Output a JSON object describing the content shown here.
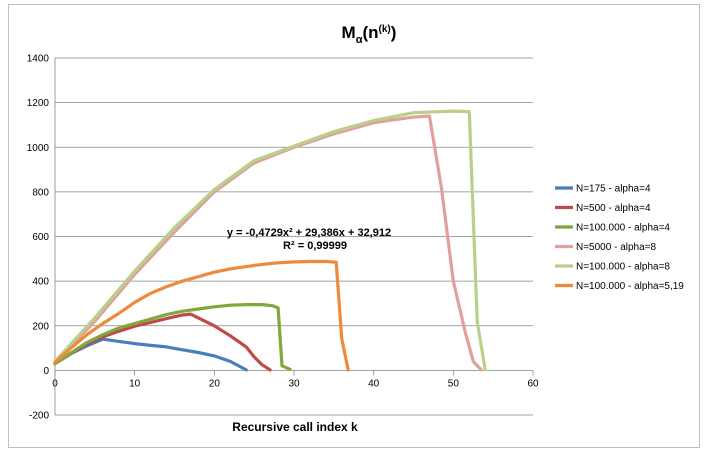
{
  "chart_data": {
    "type": "line",
    "title": "M",
    "title_sub": "α",
    "title_paren_open": "(n",
    "title_sup": "(k)",
    "title_paren_close": ")",
    "xlabel": "Recursive call index k",
    "ylabel": "",
    "xlim": [
      0,
      60
    ],
    "ylim": [
      -200,
      1400
    ],
    "xticks": [
      0,
      10,
      20,
      30,
      40,
      50,
      60
    ],
    "yticks": [
      -200,
      0,
      200,
      400,
      600,
      800,
      1000,
      1200,
      1400
    ],
    "grid": "horizontal",
    "legend_position": "right",
    "annotation": {
      "line1": "y = -0,4729x² + 29,386x + 32,912",
      "line2": "R² = 0,99999"
    },
    "series": [
      {
        "name": "N=175 - alpha=4",
        "color": "#4a7ebb",
        "points": [
          [
            0,
            30
          ],
          [
            2,
            75
          ],
          [
            4,
            110
          ],
          [
            6,
            140
          ],
          [
            8,
            130
          ],
          [
            10,
            120
          ],
          [
            12,
            112
          ],
          [
            14,
            105
          ],
          [
            16,
            92
          ],
          [
            18,
            80
          ],
          [
            20,
            65
          ],
          [
            22,
            40
          ],
          [
            24,
            2
          ]
        ]
      },
      {
        "name": "N=500 - alpha=4",
        "color": "#be4b48",
        "points": [
          [
            0,
            30
          ],
          [
            2,
            75
          ],
          [
            4,
            118
          ],
          [
            6,
            150
          ],
          [
            8,
            175
          ],
          [
            10,
            198
          ],
          [
            12,
            215
          ],
          [
            14,
            232
          ],
          [
            16,
            248
          ],
          [
            17,
            252
          ],
          [
            18,
            235
          ],
          [
            20,
            200
          ],
          [
            22,
            155
          ],
          [
            24,
            105
          ],
          [
            25,
            60
          ],
          [
            26,
            25
          ],
          [
            27,
            2
          ]
        ]
      },
      {
        "name": "N=100.000 - alpha=4",
        "color": "#7fa93c",
        "points": [
          [
            0,
            30
          ],
          [
            2,
            78
          ],
          [
            4,
            125
          ],
          [
            6,
            160
          ],
          [
            8,
            190
          ],
          [
            10,
            210
          ],
          [
            12,
            230
          ],
          [
            14,
            250
          ],
          [
            16,
            265
          ],
          [
            18,
            275
          ],
          [
            20,
            285
          ],
          [
            22,
            292
          ],
          [
            24,
            295
          ],
          [
            26,
            295
          ],
          [
            27.3,
            290
          ],
          [
            28,
            280
          ],
          [
            28.5,
            20
          ],
          [
            29.5,
            5
          ]
        ]
      },
      {
        "name": "N=5000 - alpha=8",
        "color": "#e0a09e",
        "points": [
          [
            0,
            35
          ],
          [
            5,
            220
          ],
          [
            10,
            430
          ],
          [
            15,
            620
          ],
          [
            20,
            800
          ],
          [
            25,
            930
          ],
          [
            30,
            1000
          ],
          [
            35,
            1060
          ],
          [
            40,
            1110
          ],
          [
            45,
            1135
          ],
          [
            47,
            1140
          ],
          [
            48.5,
            820
          ],
          [
            50,
            400
          ],
          [
            51.5,
            170
          ],
          [
            52.5,
            40
          ],
          [
            53.5,
            2
          ]
        ]
      },
      {
        "name": "N=100.000 - alpha=8",
        "color": "#b9d08a",
        "points": [
          [
            0,
            40
          ],
          [
            5,
            235
          ],
          [
            10,
            445
          ],
          [
            15,
            640
          ],
          [
            20,
            810
          ],
          [
            25,
            940
          ],
          [
            30,
            1005
          ],
          [
            35,
            1070
          ],
          [
            40,
            1120
          ],
          [
            45,
            1155
          ],
          [
            50,
            1162
          ],
          [
            52,
            1160
          ],
          [
            53,
            220
          ],
          [
            54,
            2
          ]
        ]
      },
      {
        "name": "N=100.000 - alpha=5,19",
        "color": "#ee8a3c",
        "points": [
          [
            0,
            35
          ],
          [
            2,
            100
          ],
          [
            4,
            160
          ],
          [
            6,
            210
          ],
          [
            8,
            255
          ],
          [
            10,
            305
          ],
          [
            12,
            345
          ],
          [
            14,
            375
          ],
          [
            16,
            400
          ],
          [
            18,
            420
          ],
          [
            20,
            440
          ],
          [
            22,
            455
          ],
          [
            24,
            465
          ],
          [
            26,
            475
          ],
          [
            28,
            482
          ],
          [
            30,
            486
          ],
          [
            32,
            488
          ],
          [
            34,
            488
          ],
          [
            35.3,
            485
          ],
          [
            36,
            140
          ],
          [
            36.8,
            2
          ]
        ]
      }
    ]
  }
}
